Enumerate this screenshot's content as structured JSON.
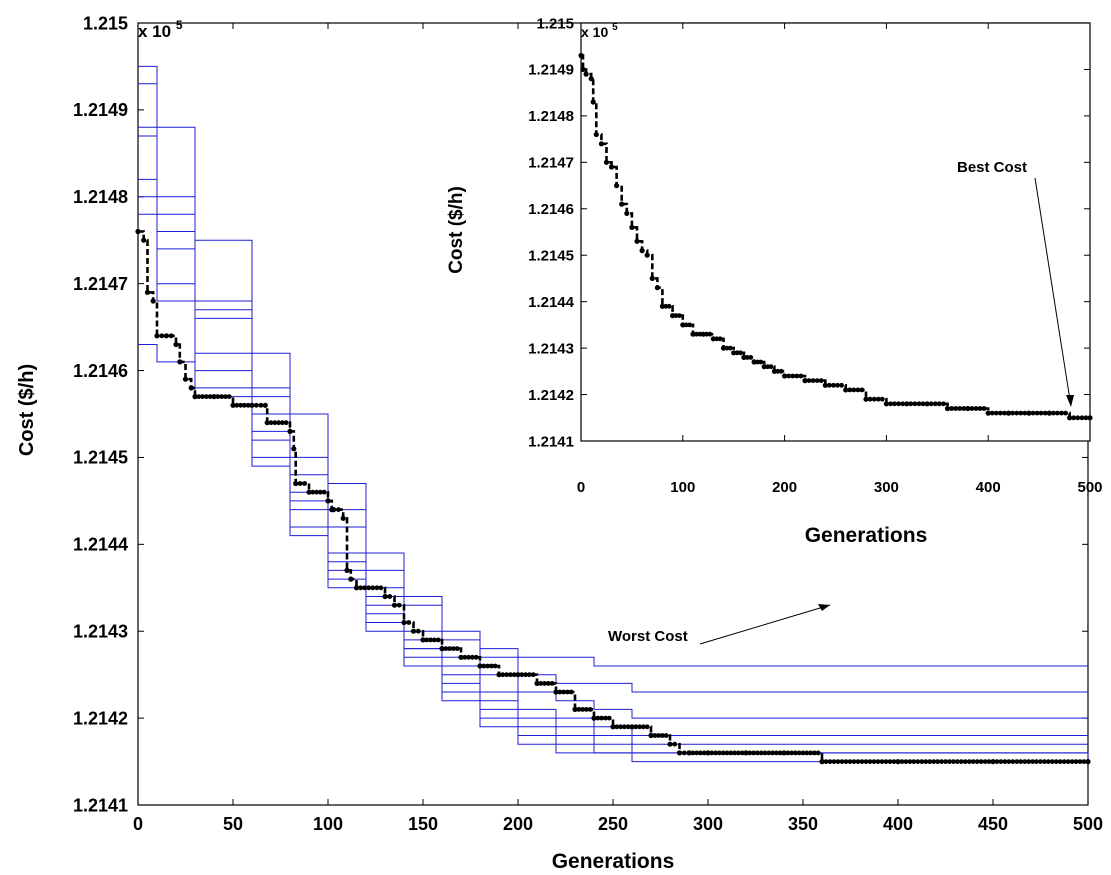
{
  "chart_data": [
    {
      "type": "line",
      "xlabel": "Generations",
      "ylabel": "Cost ($/h)",
      "y_multiplier": "x 10",
      "y_exponent": "5",
      "xlim": [
        0,
        500
      ],
      "ylim": [
        1.2141,
        1.215
      ],
      "x_ticks": [
        "0",
        "50",
        "100",
        "150",
        "200",
        "250",
        "300",
        "350",
        "400",
        "450",
        "500"
      ],
      "y_ticks": [
        "1.2141",
        "1.2142",
        "1.2143",
        "1.2144",
        "1.2145",
        "1.2146",
        "1.2147",
        "1.2148",
        "1.2149",
        "1.215"
      ],
      "grid": false,
      "annotation": {
        "text": "Worst Cost",
        "points_to": [
          362,
          1.21426
        ]
      },
      "series": [
        {
          "style": "blue-thin",
          "x": [
            0,
            10,
            30,
            60,
            80,
            100,
            120,
            140,
            160,
            180,
            200,
            220,
            240,
            260,
            500
          ],
          "y": [
            1.21493,
            1.21488,
            1.21475,
            1.21462,
            1.21455,
            1.21447,
            1.21439,
            1.21434,
            1.2143,
            1.21428,
            1.21427,
            1.21427,
            1.21426,
            1.21426,
            1.21426
          ]
        },
        {
          "style": "blue-thin",
          "x": [
            0,
            10,
            30,
            60,
            80,
            100,
            120,
            140,
            160,
            180,
            200,
            220,
            240,
            260,
            500
          ],
          "y": [
            1.21495,
            1.2148,
            1.21468,
            1.21458,
            1.2145,
            1.21444,
            1.21437,
            1.21433,
            1.21429,
            1.21427,
            1.21425,
            1.21424,
            1.21424,
            1.21423,
            1.21423
          ]
        },
        {
          "style": "blue-thin",
          "x": [
            0,
            10,
            30,
            60,
            80,
            100,
            120,
            140,
            160,
            180,
            200,
            220,
            240,
            260,
            290,
            500
          ],
          "y": [
            1.21488,
            1.21478,
            1.21467,
            1.21457,
            1.21448,
            1.21442,
            1.21435,
            1.2143,
            1.21427,
            1.21425,
            1.21423,
            1.21422,
            1.21421,
            1.2142,
            1.2142,
            1.2142
          ]
        },
        {
          "style": "blue-thin",
          "x": [
            0,
            10,
            30,
            60,
            80,
            100,
            120,
            140,
            160,
            180,
            200,
            220,
            240,
            260,
            290,
            500
          ],
          "y": [
            1.21487,
            1.21476,
            1.21466,
            1.21455,
            1.21446,
            1.21439,
            1.21434,
            1.21429,
            1.21426,
            1.21423,
            1.21421,
            1.2142,
            1.21419,
            1.21418,
            1.21418,
            1.21418
          ]
        },
        {
          "style": "blue-thin",
          "x": [
            0,
            10,
            30,
            60,
            80,
            100,
            120,
            140,
            160,
            180,
            200,
            220,
            240,
            260,
            290,
            500
          ],
          "y": [
            1.21482,
            1.21474,
            1.21462,
            1.21453,
            1.21445,
            1.21438,
            1.21433,
            1.21428,
            1.21425,
            1.21422,
            1.2142,
            1.21419,
            1.21418,
            1.21417,
            1.21417,
            1.21417
          ]
        },
        {
          "style": "blue-thin",
          "x": [
            0,
            10,
            30,
            60,
            80,
            100,
            120,
            140,
            160,
            180,
            200,
            220,
            240,
            260,
            290,
            500
          ],
          "y": [
            1.2148,
            1.2147,
            1.2146,
            1.21452,
            1.21444,
            1.21437,
            1.21432,
            1.21428,
            1.21424,
            1.21421,
            1.21419,
            1.21418,
            1.21417,
            1.21416,
            1.21416,
            1.21416
          ]
        },
        {
          "style": "blue-thin",
          "x": [
            0,
            10,
            30,
            60,
            80,
            100,
            120,
            140,
            160,
            180,
            200,
            220,
            240,
            260,
            290,
            500
          ],
          "y": [
            1.21478,
            1.21468,
            1.21458,
            1.2145,
            1.21442,
            1.21436,
            1.21431,
            1.21427,
            1.21423,
            1.2142,
            1.21418,
            1.21417,
            1.21416,
            1.21416,
            1.21416,
            1.21415
          ]
        },
        {
          "style": "blue-thin",
          "x": [
            0,
            10,
            30,
            60,
            80,
            100,
            120,
            140,
            160,
            180,
            200,
            220,
            240,
            260,
            290,
            500
          ],
          "y": [
            1.21463,
            1.21461,
            1.21457,
            1.21449,
            1.21441,
            1.21435,
            1.2143,
            1.21426,
            1.21422,
            1.21419,
            1.21417,
            1.21416,
            1.21416,
            1.21415,
            1.21415,
            1.21415
          ]
        },
        {
          "style": "black-bold",
          "x": [
            0,
            3,
            5,
            8,
            10,
            15,
            20,
            22,
            25,
            28,
            30,
            40,
            50,
            60,
            67,
            68,
            80,
            82,
            83,
            90,
            100,
            102,
            103,
            108,
            110,
            112,
            115,
            130,
            135,
            140,
            145,
            150,
            160,
            170,
            180,
            190,
            200,
            210,
            220,
            230,
            240,
            250,
            260,
            270,
            280,
            285,
            290,
            300,
            320,
            340,
            360,
            400,
            450,
            500
          ],
          "y": [
            1.21476,
            1.21475,
            1.21469,
            1.21468,
            1.21464,
            1.21464,
            1.21463,
            1.21461,
            1.21459,
            1.21458,
            1.21457,
            1.21457,
            1.21456,
            1.21456,
            1.21456,
            1.21454,
            1.21453,
            1.21451,
            1.21447,
            1.21446,
            1.21445,
            1.21444,
            1.21444,
            1.21443,
            1.21437,
            1.21436,
            1.21435,
            1.21434,
            1.21433,
            1.21431,
            1.2143,
            1.21429,
            1.21428,
            1.21427,
            1.21426,
            1.21425,
            1.21425,
            1.21424,
            1.21423,
            1.21421,
            1.2142,
            1.21419,
            1.21419,
            1.21418,
            1.21417,
            1.21416,
            1.21416,
            1.21416,
            1.21416,
            1.21416,
            1.21415,
            1.21415,
            1.21415,
            1.21415
          ]
        }
      ]
    },
    {
      "type": "line",
      "xlabel": "Generations",
      "ylabel": "Cost ($/h)",
      "y_multiplier": "x 10",
      "y_exponent": "5",
      "xlim": [
        0,
        500
      ],
      "ylim": [
        1.2141,
        1.215
      ],
      "x_ticks": [
        "0",
        "100",
        "200",
        "300",
        "400",
        "500"
      ],
      "y_ticks": [
        "1.2141",
        "1.2142",
        "1.2143",
        "1.2144",
        "1.2145",
        "1.2146",
        "1.2147",
        "1.2148",
        "1.2149",
        "1.215"
      ],
      "grid": false,
      "annotation": {
        "text": "Best Cost",
        "points_to": [
          480,
          1.21421
        ]
      },
      "series": [
        {
          "style": "black-bold",
          "x": [
            0,
            2,
            5,
            10,
            12,
            15,
            20,
            25,
            30,
            35,
            40,
            45,
            50,
            55,
            60,
            65,
            70,
            75,
            80,
            90,
            100,
            110,
            120,
            130,
            140,
            150,
            160,
            170,
            180,
            190,
            200,
            220,
            240,
            260,
            280,
            300,
            320,
            340,
            360,
            380,
            400,
            420,
            440,
            460,
            480,
            500
          ],
          "y": [
            1.21493,
            1.2149,
            1.21489,
            1.21488,
            1.21483,
            1.21476,
            1.21474,
            1.2147,
            1.21469,
            1.21465,
            1.21461,
            1.21459,
            1.21456,
            1.21453,
            1.21451,
            1.2145,
            1.21445,
            1.21443,
            1.21439,
            1.21437,
            1.21435,
            1.21433,
            1.21433,
            1.21432,
            1.2143,
            1.21429,
            1.21428,
            1.21427,
            1.21426,
            1.21425,
            1.21424,
            1.21423,
            1.21422,
            1.21421,
            1.21419,
            1.21418,
            1.21418,
            1.21418,
            1.21417,
            1.21417,
            1.21416,
            1.21416,
            1.21416,
            1.21416,
            1.21415,
            1.21415
          ]
        }
      ]
    }
  ]
}
